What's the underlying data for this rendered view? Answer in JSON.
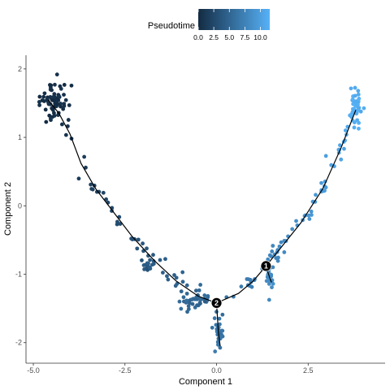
{
  "chart_data": {
    "type": "scatter",
    "xlabel": "Component 1",
    "ylabel": "Component 2",
    "xlim": [
      -5.2,
      4.6
    ],
    "ylim": [
      -2.3,
      2.2
    ],
    "x_ticks": [
      -5.0,
      -2.5,
      0.0,
      2.5
    ],
    "x_tick_labels": [
      "-5.0",
      "-2.5",
      "0.0",
      "2.5"
    ],
    "y_ticks": [
      -2,
      -1,
      0,
      1,
      2
    ],
    "y_tick_labels": [
      "-2",
      "-1",
      "0",
      "1",
      "2"
    ],
    "grid": false,
    "legend": {
      "title": "Pseudotime",
      "placement": "top",
      "range": [
        0,
        11.5
      ],
      "ticks": [
        0.0,
        2.5,
        5.0,
        7.5,
        10.0
      ],
      "tick_labels": [
        "0.0",
        "2.5",
        "5.0",
        "7.5",
        "10.0"
      ],
      "colors": {
        "low": "#132B43",
        "high": "#56B1F7"
      }
    },
    "colors": {
      "trajectory_line": "#000000",
      "branch_point_fill": "#000000",
      "branch_point_text": "#ffffff"
    },
    "trajectory": {
      "main_path": [
        [
          -4.6,
          1.55
        ],
        [
          -4.3,
          1.35
        ],
        [
          -4.0,
          1.05
        ],
        [
          -3.7,
          0.62
        ],
        [
          -3.3,
          0.25
        ],
        [
          -2.8,
          -0.1
        ],
        [
          -2.3,
          -0.45
        ],
        [
          -1.7,
          -0.8
        ],
        [
          -1.1,
          -1.1
        ],
        [
          -0.5,
          -1.32
        ],
        [
          0.0,
          -1.42
        ],
        [
          0.6,
          -1.28
        ],
        [
          1.0,
          -1.1
        ],
        [
          1.35,
          -0.88
        ],
        [
          1.7,
          -0.65
        ],
        [
          2.3,
          -0.25
        ],
        [
          2.9,
          0.25
        ],
        [
          3.4,
          0.85
        ],
        [
          3.8,
          1.4
        ]
      ],
      "side_branches": [
        [
          [
            0.0,
            -1.42
          ],
          [
            0.05,
            -1.85
          ],
          [
            0.1,
            -2.05
          ]
        ],
        [
          [
            1.35,
            -0.88
          ],
          [
            1.45,
            -1.05
          ],
          [
            1.5,
            -1.12
          ]
        ]
      ]
    },
    "branch_points": [
      {
        "label": "1",
        "x": 1.35,
        "y": -0.88
      },
      {
        "label": "2",
        "x": 0.0,
        "y": -1.42
      }
    ],
    "clusters": [
      {
        "x": -4.4,
        "y": 1.55,
        "sx": 0.18,
        "sy": 0.12,
        "n": 60,
        "t": 0.3
      },
      {
        "x": 3.8,
        "y": 1.45,
        "sx": 0.07,
        "sy": 0.14,
        "n": 45,
        "t": 11.2
      },
      {
        "x": 0.05,
        "y": -1.85,
        "sx": 0.07,
        "sy": 0.15,
        "n": 30,
        "t": 6.2
      },
      {
        "x": 1.45,
        "y": -1.05,
        "sx": 0.06,
        "sy": 0.08,
        "n": 25,
        "t": 8.2
      },
      {
        "x": -0.6,
        "y": -1.4,
        "sx": 0.18,
        "sy": 0.08,
        "n": 30,
        "t": 5.2
      },
      {
        "x": -1.9,
        "y": -0.88,
        "sx": 0.1,
        "sy": 0.06,
        "n": 15,
        "t": 4.0
      }
    ],
    "points_along_path": 140,
    "point_jitter": 0.07
  }
}
